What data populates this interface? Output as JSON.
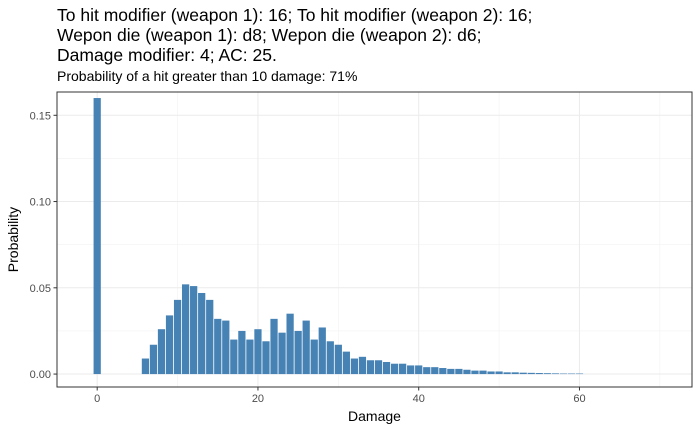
{
  "chart_data": {
    "type": "bar",
    "title_lines": [
      "To hit modifier (weapon 1): 16; To hit modifier (weapon 2): 16;",
      "Wepon die (weapon 1): d8; Wepon die (weapon 2): d6;",
      "Damage modifier: 4; AC: 25."
    ],
    "subtitle": "Probability of a hit greater than 10 damage: 71%",
    "xlabel": "Damage",
    "ylabel": "Probability",
    "xlim": [
      -5,
      74
    ],
    "ylim": [
      -0.0075,
      0.1635
    ],
    "xticks": [
      0,
      20,
      40,
      60
    ],
    "yticks": [
      0.0,
      0.05,
      0.1,
      0.15
    ],
    "ytick_labels": [
      "0.00",
      "0.05",
      "0.10",
      "0.15"
    ],
    "grid": true,
    "bar_color": "#4682B4",
    "x": [
      0,
      6,
      7,
      8,
      9,
      10,
      11,
      12,
      13,
      14,
      15,
      16,
      17,
      18,
      19,
      20,
      21,
      22,
      23,
      24,
      25,
      26,
      27,
      28,
      29,
      30,
      31,
      32,
      33,
      34,
      35,
      36,
      37,
      38,
      39,
      40,
      41,
      42,
      43,
      44,
      45,
      46,
      47,
      48,
      49,
      50,
      51,
      52,
      53,
      54,
      55,
      56,
      57,
      58,
      59,
      60
    ],
    "values": [
      0.16,
      0.009,
      0.017,
      0.026,
      0.034,
      0.043,
      0.052,
      0.051,
      0.047,
      0.043,
      0.032,
      0.031,
      0.02,
      0.025,
      0.02,
      0.026,
      0.019,
      0.032,
      0.024,
      0.035,
      0.025,
      0.031,
      0.02,
      0.027,
      0.019,
      0.017,
      0.013,
      0.009,
      0.01,
      0.008,
      0.008,
      0.007,
      0.006,
      0.006,
      0.005,
      0.005,
      0.004,
      0.004,
      0.0035,
      0.003,
      0.003,
      0.0025,
      0.002,
      0.002,
      0.0015,
      0.0015,
      0.001,
      0.001,
      0.0008,
      0.0007,
      0.0006,
      0.0005,
      0.0004,
      0.0003,
      0.0003,
      0.0003
    ]
  }
}
